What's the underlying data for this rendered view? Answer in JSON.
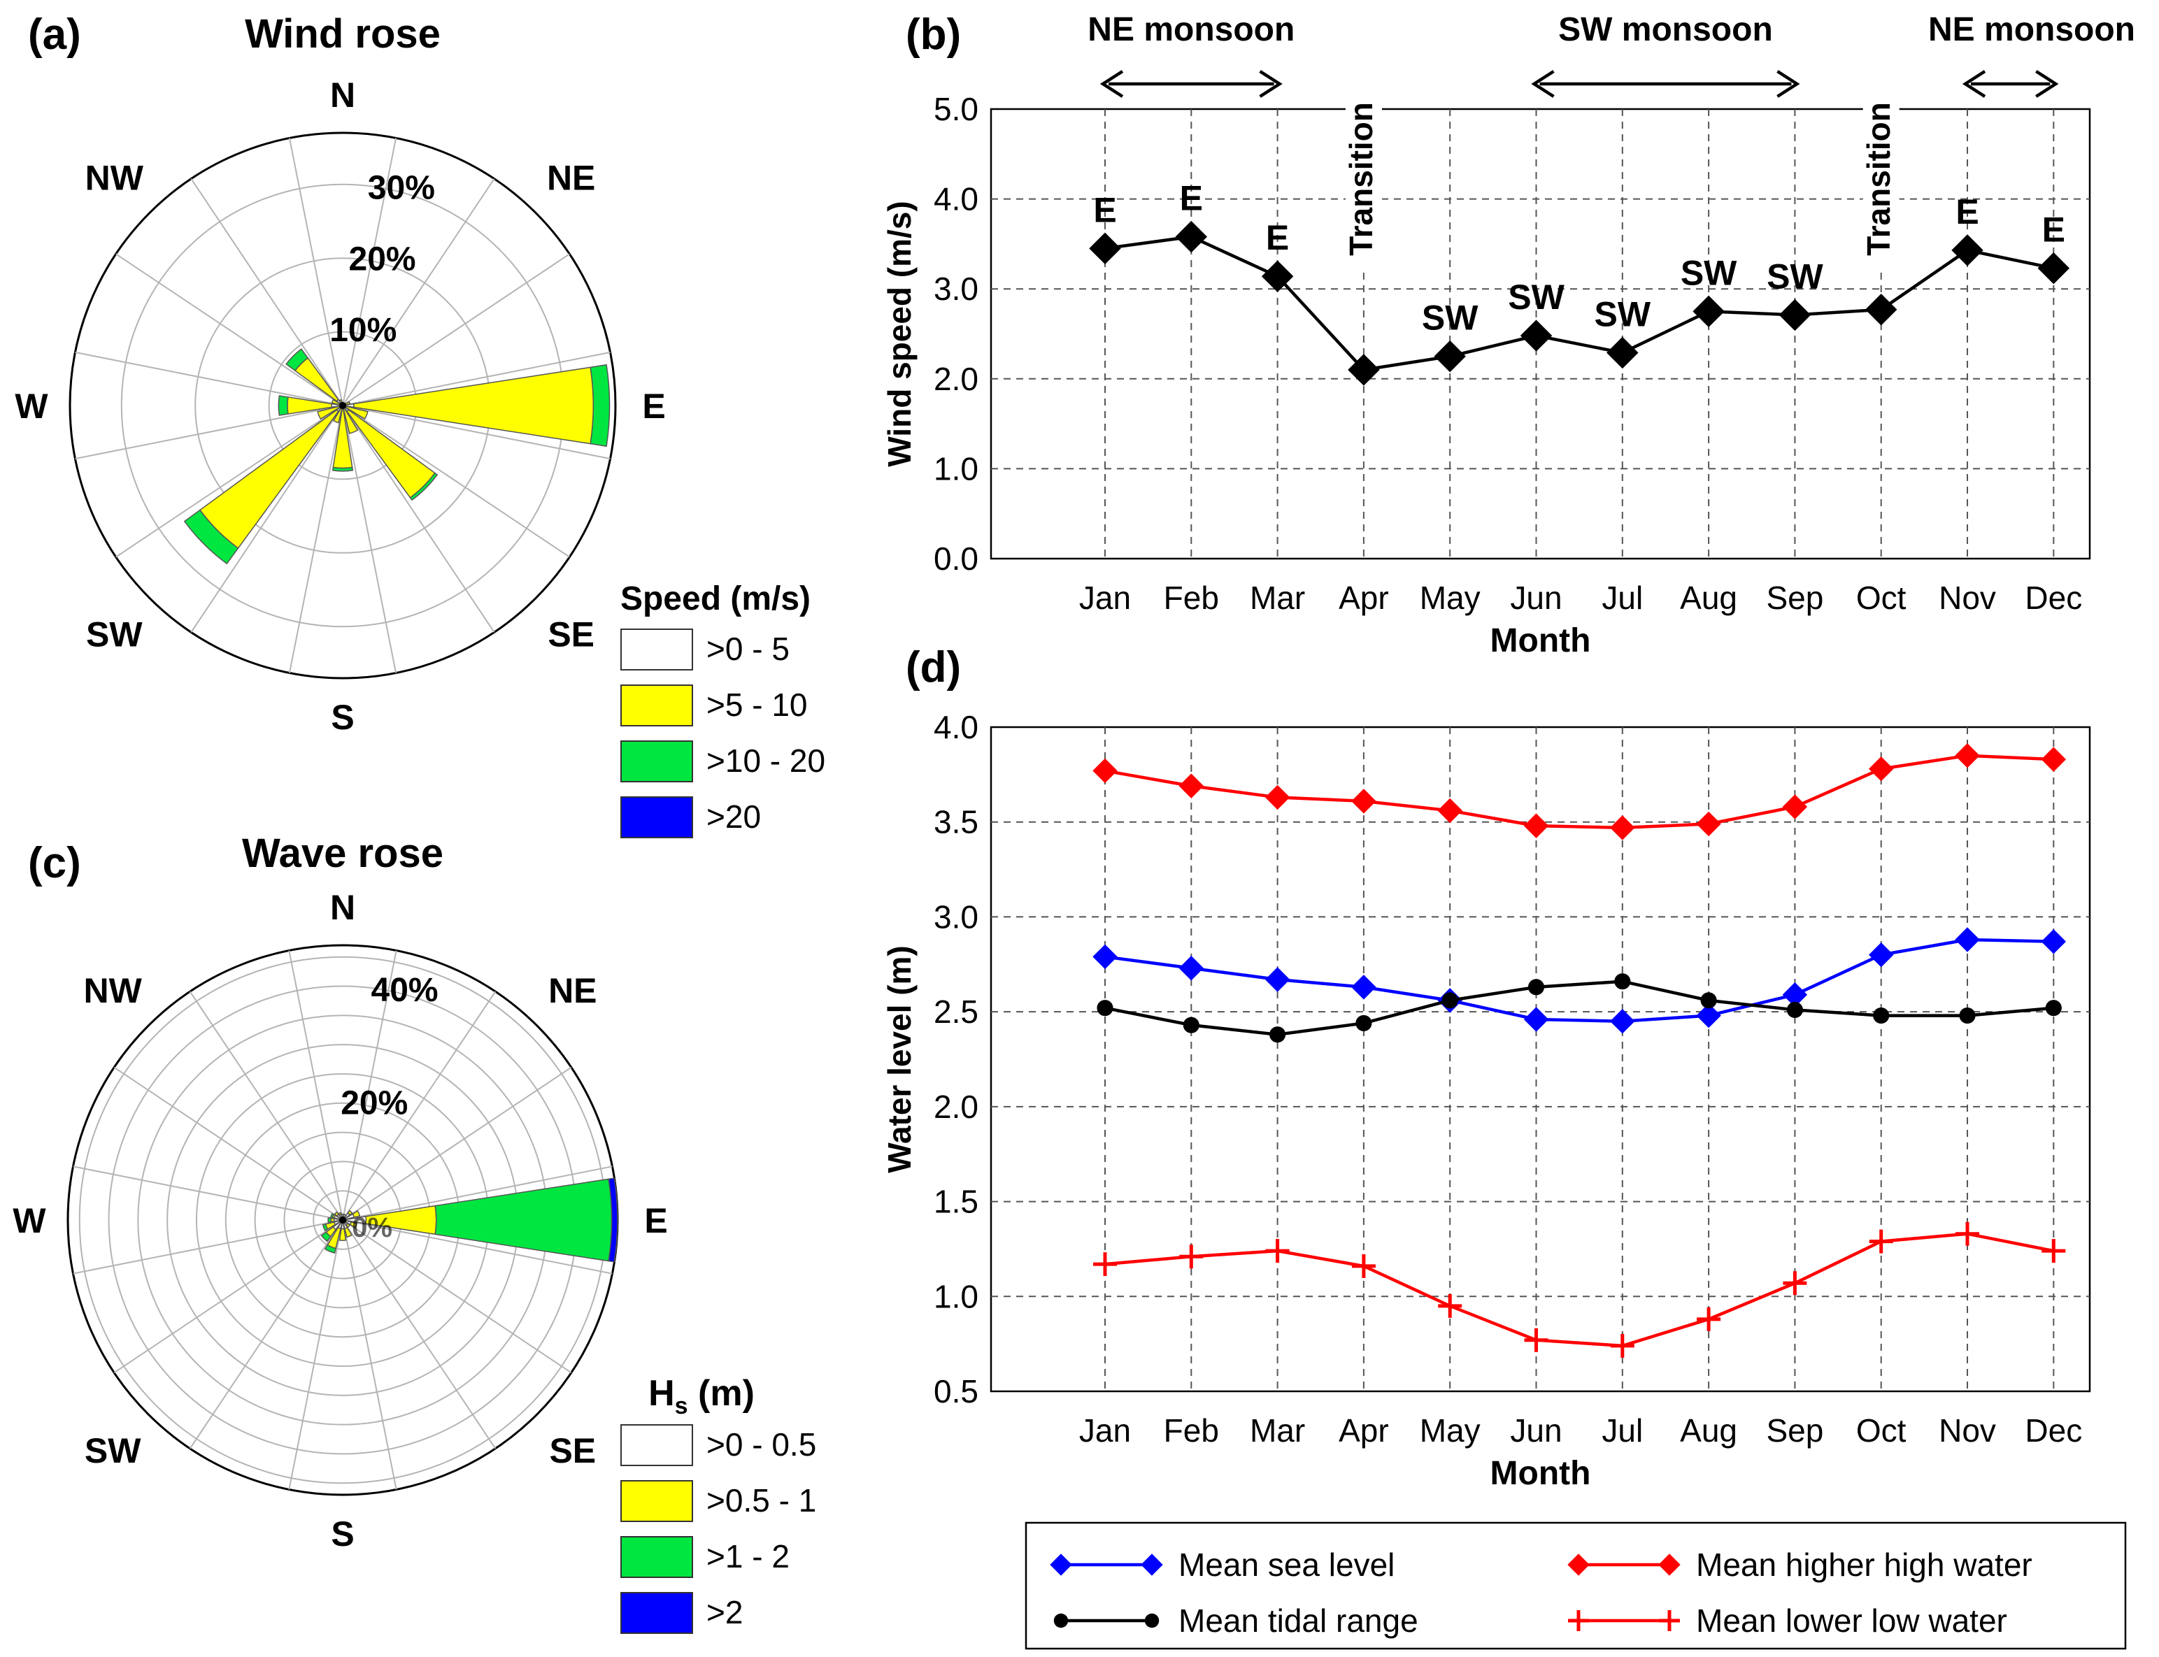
{
  "panels": {
    "a": {
      "letter": "(a)",
      "title": "Wind rose"
    },
    "b": {
      "letter": "(b)"
    },
    "c": {
      "letter": "(c)",
      "title": "Wave rose"
    },
    "d": {
      "letter": "(d)"
    }
  },
  "chart_data": [
    {
      "id": "wind-rose",
      "type": "rose",
      "title": "Wind rose",
      "directions": [
        "N",
        "NE",
        "E",
        "SE",
        "S",
        "SW",
        "W",
        "NW"
      ],
      "sector_count": 16,
      "rings_percent": [
        10,
        20,
        30
      ],
      "ring_labels": [
        "10%",
        "20%",
        "30%"
      ],
      "max_percent": 37,
      "legend_title": "Speed (m/s)",
      "bins": [
        {
          "label": ">0 - 5",
          "color": "#ffffff"
        },
        {
          "label": ">5 - 10",
          "color": "#ffff00"
        },
        {
          "label": ">10 - 20",
          "color": "#00e640"
        },
        {
          "label": ">20",
          "color": "#0000ff"
        }
      ],
      "petals": [
        {
          "bearing": 67.5,
          "values": [
            0.3,
            0.7,
            0,
            0
          ]
        },
        {
          "bearing": 90,
          "values": [
            1.5,
            32.5,
            2.2,
            0
          ]
        },
        {
          "bearing": 112.5,
          "values": [
            0.5,
            3.0,
            0,
            0
          ]
        },
        {
          "bearing": 135,
          "values": [
            1.0,
            14.5,
            0.4,
            0
          ]
        },
        {
          "bearing": 157.5,
          "values": [
            0.4,
            3.5,
            0,
            0
          ]
        },
        {
          "bearing": 180,
          "values": [
            0.5,
            8.0,
            0.4,
            0
          ]
        },
        {
          "bearing": 202.5,
          "values": [
            0.4,
            2.0,
            0,
            0
          ]
        },
        {
          "bearing": 225,
          "values": [
            1.0,
            23.0,
            2.6,
            0
          ]
        },
        {
          "bearing": 247.5,
          "values": [
            0.5,
            3.0,
            0,
            0
          ]
        },
        {
          "bearing": 270,
          "values": [
            1.5,
            6.0,
            1.2,
            0
          ]
        },
        {
          "bearing": 292.5,
          "values": [
            0.5,
            1.0,
            0,
            0
          ]
        },
        {
          "bearing": 315,
          "values": [
            1.0,
            7.0,
            1.5,
            0
          ]
        },
        {
          "bearing": 337.5,
          "values": [
            0.3,
            0.5,
            0,
            0
          ]
        }
      ]
    },
    {
      "id": "monthly-wind-speed",
      "type": "line",
      "title": "",
      "categories": [
        "Jan",
        "Feb",
        "Mar",
        "Apr",
        "May",
        "Jun",
        "Jul",
        "Aug",
        "Sep",
        "Oct",
        "Nov",
        "Dec"
      ],
      "series": [
        {
          "name": "Wind speed",
          "color": "#000000",
          "marker": "diamond",
          "values": [
            3.45,
            3.58,
            3.14,
            2.1,
            2.25,
            2.48,
            2.29,
            2.75,
            2.71,
            2.77,
            3.43,
            3.23
          ]
        }
      ],
      "point_labels": [
        "E",
        "E",
        "E",
        "Transition",
        "SW",
        "SW",
        "SW",
        "SW",
        "SW",
        "Transition",
        "E",
        "E"
      ],
      "annotations": [
        {
          "label": "NE monsoon",
          "from": "Jan",
          "to": "Mar"
        },
        {
          "label": "SW monsoon",
          "from": "Jun",
          "to": "Sep"
        },
        {
          "label": "NE monsoon",
          "from": "Nov",
          "to": "Dec"
        }
      ],
      "xlabel": "Month",
      "ylabel": "Wind speed (m/s)",
      "ylim": [
        0,
        5
      ],
      "yticks": [
        "0.0",
        "1.0",
        "2.0",
        "3.0",
        "4.0",
        "5.0"
      ]
    },
    {
      "id": "wave-rose",
      "type": "rose",
      "title": "Wave rose",
      "directions": [
        "N",
        "NE",
        "E",
        "SE",
        "S",
        "SW",
        "W",
        "NW"
      ],
      "sector_count": 16,
      "rings_percent": [
        5,
        10,
        15,
        20,
        25,
        30,
        35,
        40,
        45
      ],
      "ring_labels": [
        "20%",
        "40%"
      ],
      "ring_label_values": [
        20,
        40
      ],
      "faint_ring_label": "0%",
      "max_percent": 47,
      "legend_title": "Hs (m)",
      "bins": [
        {
          "label": ">0 - 0.5",
          "color": "#ffffff"
        },
        {
          "label": ">0.5 - 1",
          "color": "#ffff00"
        },
        {
          "label": ">1 - 2",
          "color": "#00e640"
        },
        {
          "label": ">2",
          "color": "#0000ff"
        }
      ],
      "petals": [
        {
          "bearing": 45,
          "values": [
            1.5,
            0.5,
            0,
            0
          ]
        },
        {
          "bearing": 67.5,
          "values": [
            2.0,
            1.0,
            0,
            0
          ]
        },
        {
          "bearing": 90,
          "values": [
            4.0,
            12.0,
            30.0,
            1.0
          ]
        },
        {
          "bearing": 112.5,
          "values": [
            1.5,
            1.0,
            0,
            0
          ]
        },
        {
          "bearing": 135,
          "values": [
            1.0,
            0.5,
            0,
            0
          ]
        },
        {
          "bearing": 157.5,
          "values": [
            1.5,
            1.5,
            0,
            0
          ]
        },
        {
          "bearing": 180,
          "values": [
            1.5,
            2.0,
            0,
            0
          ]
        },
        {
          "bearing": 202.5,
          "values": [
            1.5,
            3.5,
            0.8,
            0
          ]
        },
        {
          "bearing": 225,
          "values": [
            2.0,
            1.5,
            1.0,
            0
          ]
        },
        {
          "bearing": 247.5,
          "values": [
            1.5,
            1.5,
            0.5,
            0
          ]
        },
        {
          "bearing": 270,
          "values": [
            1.5,
            0.5,
            0.5,
            0
          ]
        },
        {
          "bearing": 292.5,
          "values": [
            1.5,
            0.3,
            0.3,
            0
          ]
        },
        {
          "bearing": 315,
          "values": [
            1.2,
            0.5,
            0,
            0
          ]
        },
        {
          "bearing": 337.5,
          "values": [
            1.0,
            0.3,
            0,
            0
          ]
        },
        {
          "bearing": 0,
          "values": [
            1.0,
            0,
            0,
            0
          ]
        },
        {
          "bearing": 22.5,
          "values": [
            1.0,
            0,
            0,
            0
          ]
        }
      ]
    },
    {
      "id": "monthly-water-level",
      "type": "line",
      "title": "",
      "categories": [
        "Jan",
        "Feb",
        "Mar",
        "Apr",
        "May",
        "Jun",
        "Jul",
        "Aug",
        "Sep",
        "Oct",
        "Nov",
        "Dec"
      ],
      "series": [
        {
          "name": "Mean sea level",
          "color": "#0000ff",
          "marker": "diamond",
          "values": [
            2.79,
            2.73,
            2.67,
            2.63,
            2.56,
            2.46,
            2.45,
            2.48,
            2.59,
            2.8,
            2.88,
            2.87
          ]
        },
        {
          "name": "Mean tidal range",
          "color": "#000000",
          "marker": "circle",
          "values": [
            2.52,
            2.43,
            2.38,
            2.44,
            2.56,
            2.63,
            2.66,
            2.56,
            2.51,
            2.48,
            2.48,
            2.52
          ]
        },
        {
          "name": "Mean higher high water",
          "color": "#ff0000",
          "marker": "diamond",
          "values": [
            3.77,
            3.69,
            3.63,
            3.61,
            3.56,
            3.48,
            3.47,
            3.49,
            3.58,
            3.78,
            3.85,
            3.83
          ]
        },
        {
          "name": "Mean lower low water",
          "color": "#ff0000",
          "marker": "plus",
          "values": [
            1.17,
            1.21,
            1.24,
            1.16,
            0.95,
            0.77,
            0.74,
            0.88,
            1.07,
            1.29,
            1.33,
            1.24
          ]
        }
      ],
      "xlabel": "Month",
      "ylabel": "Water level (m)",
      "ylim": [
        0.5,
        4.0
      ],
      "yticks": [
        "0.5",
        "1.0",
        "1.5",
        "2.0",
        "2.5",
        "3.0",
        "3.5",
        "4.0"
      ],
      "legend_position": "bottom"
    }
  ]
}
